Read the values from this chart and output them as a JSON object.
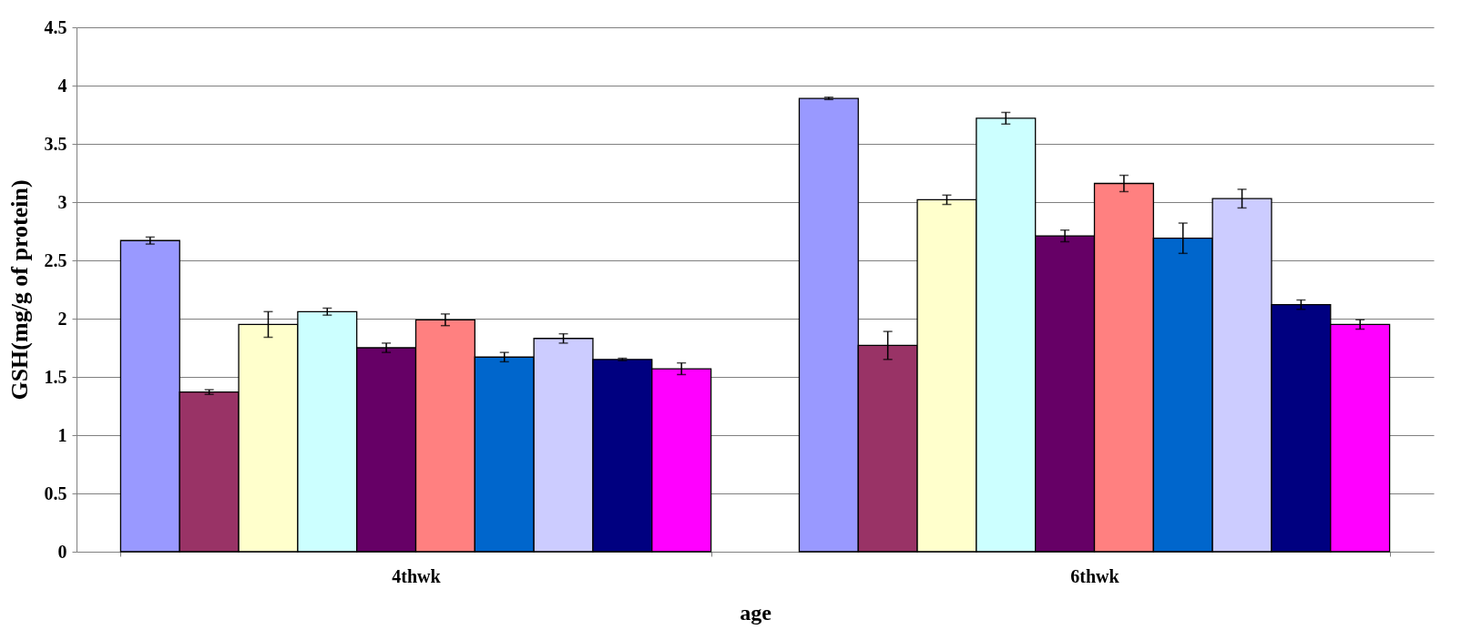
{
  "chart_data": {
    "type": "bar",
    "xlabel": "age",
    "ylabel": "GSH(mg/g of protein)",
    "categories": [
      "4thwk",
      "6thwk"
    ],
    "series": [
      {
        "color": "#9999ff",
        "values": [
          2.67,
          3.89
        ],
        "errors": [
          0.03,
          0.01
        ]
      },
      {
        "color": "#993366",
        "values": [
          1.37,
          1.77
        ],
        "errors": [
          0.02,
          0.12
        ]
      },
      {
        "color": "#ffffcc",
        "values": [
          1.95,
          3.02
        ],
        "errors": [
          0.11,
          0.04
        ]
      },
      {
        "color": "#ccffff",
        "values": [
          2.06,
          3.72
        ],
        "errors": [
          0.03,
          0.05
        ]
      },
      {
        "color": "#660066",
        "values": [
          1.75,
          2.71
        ],
        "errors": [
          0.04,
          0.05
        ]
      },
      {
        "color": "#ff8080",
        "values": [
          1.99,
          3.16
        ],
        "errors": [
          0.05,
          0.07
        ]
      },
      {
        "color": "#0066cc",
        "values": [
          1.67,
          2.69
        ],
        "errors": [
          0.04,
          0.13
        ]
      },
      {
        "color": "#ccccff",
        "values": [
          1.83,
          3.03
        ],
        "errors": [
          0.04,
          0.08
        ]
      },
      {
        "color": "#000080",
        "values": [
          1.65,
          2.12
        ],
        "errors": [
          0.01,
          0.04
        ]
      },
      {
        "color": "#ff00ff",
        "values": [
          1.57,
          1.95
        ],
        "errors": [
          0.05,
          0.04
        ]
      }
    ],
    "ylim": [
      0,
      4.5
    ],
    "yticks": [
      0,
      0.5,
      1,
      1.5,
      2,
      2.5,
      3,
      3.5,
      4,
      4.5
    ],
    "grid": "y",
    "legend": false
  }
}
